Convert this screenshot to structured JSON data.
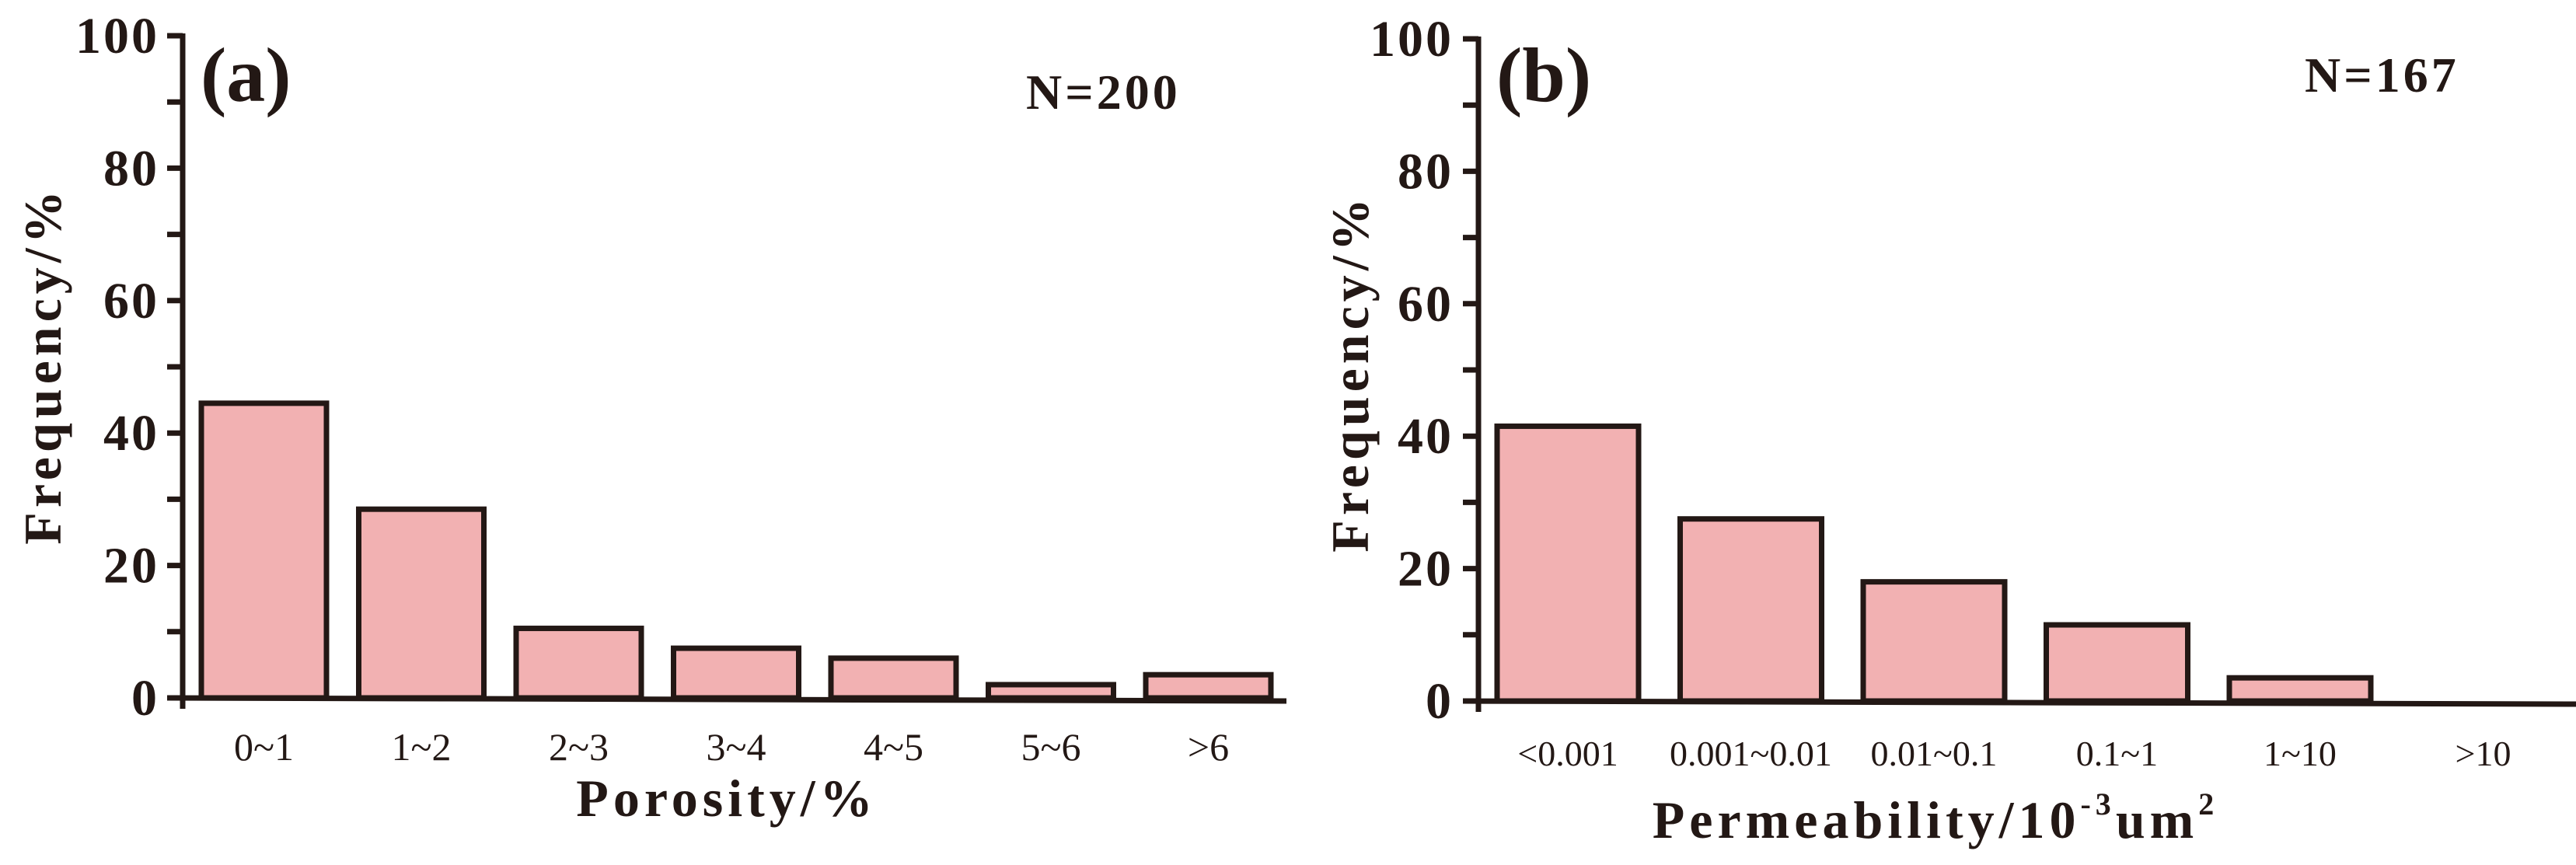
{
  "colors": {
    "bar_fill": "#F2B1B2",
    "ink": "#231815",
    "background": "#FFFFFF"
  },
  "chart_data": [
    {
      "type": "bar",
      "panel_tag": "(a)",
      "sample_size_label": "N=200",
      "title": "",
      "xlabel": "Porosity/%",
      "ylabel": "Frequency/%",
      "ylim": [
        0,
        100
      ],
      "yticks": [
        0,
        20,
        40,
        60,
        80,
        100
      ],
      "minor_tick_step": 10,
      "grid": false,
      "legend": null,
      "categories": [
        "0~1",
        "1~2",
        "2~3",
        "3~4",
        "4~5",
        "5~6",
        ">6"
      ],
      "values": [
        44.5,
        28.5,
        10.5,
        7.5,
        6,
        2,
        3.5
      ]
    },
    {
      "type": "bar",
      "panel_tag": "(b)",
      "sample_size_label": "N=167",
      "title": "",
      "xlabel": "Permeability/10-3um2",
      "xlabel_parts": {
        "main": "Permeability/10",
        "sup1": "-3",
        "mid": "um",
        "sup2": "2"
      },
      "ylabel": "Frequency/%",
      "ylim": [
        0,
        100
      ],
      "yticks": [
        0,
        20,
        40,
        60,
        80,
        100
      ],
      "minor_tick_step": 10,
      "grid": false,
      "legend": null,
      "categories": [
        "<0.001",
        "0.001~0.01",
        "0.01~0.1",
        "0.1~1",
        "1~10",
        ">10"
      ],
      "values": [
        41.5,
        27.5,
        18,
        11.5,
        3.5,
        0
      ]
    }
  ]
}
